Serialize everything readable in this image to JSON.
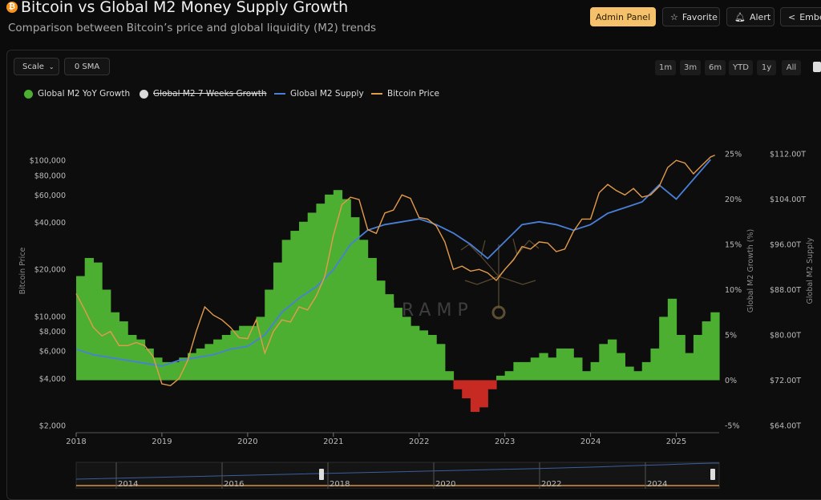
{
  "header": {
    "title": "Bitcoin vs Global M2 Money Supply Growth",
    "subtitle": "Comparison between Bitcoin’s price and global liquidity (M2) trends",
    "admin_label": "Admin Panel",
    "favorite_label": "Favorite",
    "alert_label": "Alert",
    "embed_label": "Embe"
  },
  "controls": {
    "scale_label": "Scale",
    "sma_label": "0 SMA",
    "ranges": [
      "1m",
      "3m",
      "6m",
      "YTD",
      "1y",
      "All"
    ]
  },
  "legend": [
    {
      "label": "Global M2 YoY Growth",
      "color": "#4caf32",
      "kind": "dot",
      "struck": false
    },
    {
      "label": "Global M2 7 Weeks Growth",
      "color": "#d9d9d9",
      "kind": "dot",
      "struck": true
    },
    {
      "label": "Global M2 Supply",
      "color": "#4a7fd8",
      "kind": "line",
      "struck": false
    },
    {
      "label": "Bitcoin Price",
      "color": "#e39b4a",
      "kind": "line",
      "struck": false
    }
  ],
  "watermark": "ONRAMP",
  "colors": {
    "positive": "#4caf32",
    "negative": "#c62a22",
    "m2": "#4a7fd8",
    "btc": "#e39b4a"
  },
  "chart_data": {
    "type": "line",
    "title": "Bitcoin vs Global M2 Money Supply Growth",
    "x_range": [
      2018.0,
      2025.5
    ],
    "x_ticks": [
      "2018",
      "2019",
      "2020",
      "2021",
      "2022",
      "2023",
      "2024",
      "2025"
    ],
    "y_left": {
      "label": "Bitcoin Price",
      "scale": "log",
      "range": [
        2000,
        110000
      ],
      "ticks": [
        {
          "v": 100000,
          "t": "$100,000"
        },
        {
          "v": 80000,
          "t": "$80,000"
        },
        {
          "v": 60000,
          "t": "$60,000"
        },
        {
          "v": 40000,
          "t": "$40,000"
        },
        {
          "v": 20000,
          "t": "$20,000"
        },
        {
          "v": 10000,
          "t": "$10,000"
        },
        {
          "v": 8000,
          "t": "$8,000"
        },
        {
          "v": 6000,
          "t": "$6,000"
        },
        {
          "v": 4000,
          "t": "$4,000"
        },
        {
          "v": 2000,
          "t": "$2,000"
        }
      ]
    },
    "y_growth": {
      "label": "Global M2 Growth (%)",
      "range": [
        -5,
        25
      ],
      "ticks": [
        {
          "v": 25,
          "t": "25%"
        },
        {
          "v": 20,
          "t": "20%"
        },
        {
          "v": 15,
          "t": "15%"
        },
        {
          "v": 10,
          "t": "10%"
        },
        {
          "v": 5,
          "t": "5%"
        },
        {
          "v": 0,
          "t": "0%"
        },
        {
          "v": -5,
          "t": "-5%"
        }
      ]
    },
    "y_supply": {
      "label": "Global M2 Supply",
      "range": [
        64,
        112
      ],
      "ticks": [
        {
          "v": 112,
          "t": "$112.00T"
        },
        {
          "v": 104,
          "t": "$104.00T"
        },
        {
          "v": 96,
          "t": "$96.00T"
        },
        {
          "v": 88,
          "t": "$88.00T"
        },
        {
          "v": 80,
          "t": "$80.00T"
        },
        {
          "v": 72,
          "t": "$72.00T"
        },
        {
          "v": 64,
          "t": "$64.00T"
        }
      ]
    },
    "series": [
      {
        "name": "Global M2 YoY Growth",
        "type": "bar",
        "x": [
          2018.0,
          2018.1,
          2018.2,
          2018.3,
          2018.4,
          2018.5,
          2018.6,
          2018.7,
          2018.8,
          2018.9,
          2019.0,
          2019.1,
          2019.2,
          2019.3,
          2019.4,
          2019.5,
          2019.6,
          2019.7,
          2019.8,
          2019.9,
          2020.0,
          2020.1,
          2020.2,
          2020.3,
          2020.4,
          2020.5,
          2020.6,
          2020.7,
          2020.8,
          2020.9,
          2021.0,
          2021.1,
          2021.2,
          2021.3,
          2021.4,
          2021.5,
          2021.6,
          2021.7,
          2021.8,
          2021.9,
          2022.0,
          2022.1,
          2022.2,
          2022.3,
          2022.4,
          2022.5,
          2022.6,
          2022.7,
          2022.8,
          2022.9,
          2023.0,
          2023.1,
          2023.2,
          2023.3,
          2023.4,
          2023.5,
          2023.6,
          2023.7,
          2023.8,
          2023.9,
          2024.0,
          2024.1,
          2024.2,
          2024.3,
          2024.4,
          2024.5,
          2024.6,
          2024.7,
          2024.8,
          2024.9,
          2025.0,
          2025.1,
          2025.2,
          2025.3,
          2025.4
        ],
        "values": [
          11.5,
          13.5,
          13.0,
          10.0,
          7.5,
          6.5,
          5.0,
          4.5,
          3.5,
          2.5,
          2.0,
          2.0,
          2.5,
          3.0,
          3.5,
          4.0,
          4.5,
          5.0,
          5.5,
          6.0,
          6.0,
          7.0,
          10.0,
          13.0,
          15.5,
          16.5,
          17.5,
          18.5,
          19.5,
          20.5,
          21.0,
          20.0,
          18.0,
          15.5,
          13.5,
          11.0,
          9.5,
          8.0,
          7.0,
          6.0,
          5.5,
          5.0,
          4.0,
          1.0,
          -1.0,
          -2.0,
          -3.5,
          -3.0,
          -1.0,
          0.5,
          1.0,
          2.0,
          2.0,
          2.5,
          3.0,
          2.5,
          3.5,
          3.5,
          2.5,
          1.0,
          2.0,
          4.0,
          4.5,
          3.0,
          1.5,
          1.0,
          2.0,
          3.5,
          7.0,
          9.0,
          5.0,
          3.0,
          5.0,
          6.5,
          7.5
        ]
      },
      {
        "name": "Bitcoin Price",
        "type": "line",
        "x": [
          2018.0,
          2018.1,
          2018.2,
          2018.3,
          2018.4,
          2018.5,
          2018.6,
          2018.7,
          2018.8,
          2018.9,
          2019.0,
          2019.1,
          2019.2,
          2019.3,
          2019.4,
          2019.5,
          2019.6,
          2019.7,
          2019.8,
          2019.9,
          2020.0,
          2020.1,
          2020.2,
          2020.3,
          2020.4,
          2020.5,
          2020.6,
          2020.7,
          2020.8,
          2020.9,
          2021.0,
          2021.1,
          2021.2,
          2021.3,
          2021.4,
          2021.5,
          2021.6,
          2021.7,
          2021.8,
          2021.9,
          2022.0,
          2022.1,
          2022.2,
          2022.3,
          2022.4,
          2022.5,
          2022.6,
          2022.7,
          2022.8,
          2022.9,
          2023.0,
          2023.1,
          2023.2,
          2023.3,
          2023.4,
          2023.5,
          2023.6,
          2023.7,
          2023.8,
          2023.9,
          2024.0,
          2024.1,
          2024.2,
          2024.3,
          2024.4,
          2024.5,
          2024.6,
          2024.7,
          2024.8,
          2024.9,
          2025.0,
          2025.1,
          2025.2,
          2025.3,
          2025.4,
          2025.45
        ],
        "values": [
          14000,
          11000,
          8500,
          7500,
          8000,
          6500,
          6500,
          6800,
          6500,
          5500,
          3700,
          3600,
          4000,
          5200,
          8000,
          11500,
          10200,
          9500,
          8500,
          7300,
          7200,
          9500,
          5800,
          8000,
          9500,
          9200,
          11500,
          11000,
          13500,
          18000,
          33000,
          52000,
          58000,
          56000,
          36000,
          34000,
          46000,
          48000,
          60000,
          57000,
          43000,
          42000,
          38000,
          30000,
          20000,
          21000,
          19500,
          20000,
          19000,
          17000,
          20000,
          23000,
          28000,
          27000,
          30000,
          29500,
          26000,
          27000,
          35000,
          42000,
          42000,
          62000,
          70000,
          64000,
          60000,
          66000,
          58000,
          60000,
          68000,
          90000,
          100000,
          96000,
          82000,
          93000,
          105000,
          108000
        ]
      },
      {
        "name": "Global M2 Supply",
        "type": "line",
        "unit": "T USD",
        "x": [
          2018.0,
          2018.2,
          2018.4,
          2018.6,
          2018.8,
          2019.0,
          2019.2,
          2019.4,
          2019.6,
          2019.8,
          2020.0,
          2020.2,
          2020.4,
          2020.6,
          2020.8,
          2021.0,
          2021.2,
          2021.4,
          2021.6,
          2021.8,
          2022.0,
          2022.2,
          2022.4,
          2022.6,
          2022.8,
          2023.0,
          2023.2,
          2023.4,
          2023.6,
          2023.8,
          2024.0,
          2024.2,
          2024.4,
          2024.6,
          2024.8,
          2025.0,
          2025.2,
          2025.4
        ],
        "values": [
          77.5,
          76.5,
          76.0,
          75.5,
          75.0,
          74.5,
          75.5,
          76.0,
          76.5,
          77.5,
          78.0,
          80.0,
          84.0,
          86.5,
          88.5,
          91.5,
          96.0,
          98.5,
          99.5,
          100.0,
          100.5,
          99.5,
          98.0,
          96.0,
          93.5,
          96.5,
          99.5,
          100.0,
          99.5,
          98.5,
          99.5,
          101.5,
          102.5,
          103.5,
          106.5,
          104.0,
          107.5,
          111.0
        ]
      }
    ],
    "navigator": {
      "ticks": [
        "2014",
        "2016",
        "2018",
        "2020",
        "2022",
        "2024"
      ]
    }
  }
}
